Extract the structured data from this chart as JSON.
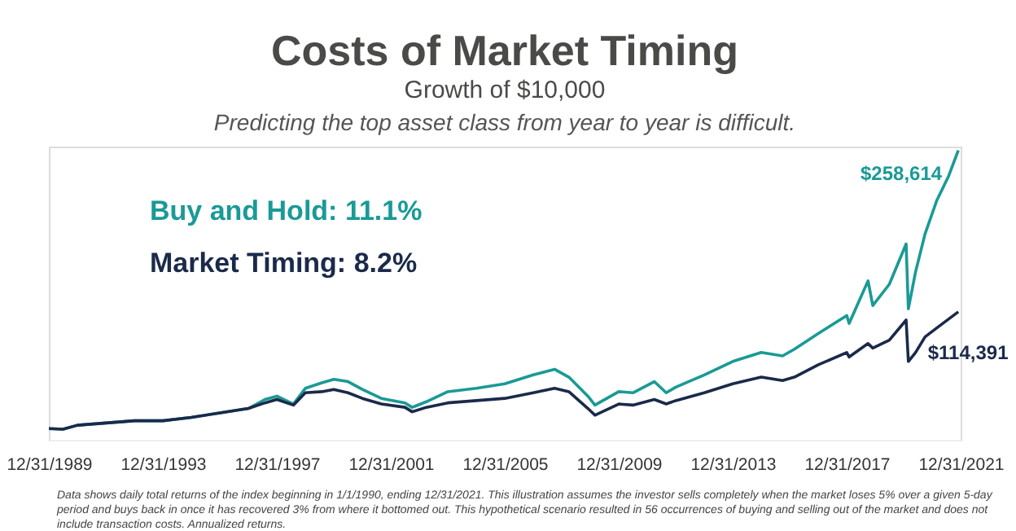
{
  "chart_data": {
    "type": "line",
    "title": "Costs of Market Timing",
    "subtitle": "Growth of $10,000",
    "ylim": [
      0,
      262000
    ],
    "tick_labels": "x",
    "x": [
      "1990-01",
      "1990-07",
      "1991-01",
      "1992-01",
      "1993-01",
      "1994-01",
      "1995-01",
      "1996-01",
      "1997-01",
      "1997-08",
      "1998-01",
      "1998-08",
      "1999-01",
      "1999-08",
      "2000-01",
      "2000-07",
      "2001-01",
      "2001-09",
      "2002-07",
      "2002-10",
      "2003-04",
      "2004-01",
      "2005-01",
      "2006-01",
      "2007-01",
      "2007-10",
      "2008-04",
      "2008-12",
      "2009-03",
      "2010-01",
      "2010-07",
      "2011-04",
      "2011-09",
      "2012-01",
      "2013-01",
      "2014-01",
      "2015-01",
      "2015-10",
      "2016-03",
      "2017-01",
      "2018-01",
      "2018-02",
      "2018-10",
      "2018-12",
      "2019-07",
      "2020-02",
      "2020-03",
      "2020-06",
      "2020-10",
      "2021-03",
      "2021-08",
      "2021-12"
    ],
    "xlim": [
      "1989-12-31",
      "2021-12-31"
    ],
    "xticks": [
      {
        "value": "1989-12-31",
        "label": "12/31/1989"
      },
      {
        "value": "1993-12-31",
        "label": "12/31/1993"
      },
      {
        "value": "1997-12-31",
        "label": "12/31/1997"
      },
      {
        "value": "2001-12-31",
        "label": "12/31/2001"
      },
      {
        "value": "2005-12-31",
        "label": "12/31/2005"
      },
      {
        "value": "2009-12-31",
        "label": "12/31/2009"
      },
      {
        "value": "2013-12-31",
        "label": "12/31/2013"
      },
      {
        "value": "2017-12-31",
        "label": "12/31/2017"
      },
      {
        "value": "2021-12-31",
        "label": "12/31/2021"
      }
    ],
    "series": [
      {
        "name": "Buy and Hold: 11.1%",
        "color": "#1a9a96",
        "values": [
          10000,
          9500,
          13000,
          15000,
          17000,
          17000,
          20000,
          24000,
          28000,
          36000,
          39000,
          32000,
          46000,
          51000,
          54000,
          52000,
          45000,
          37000,
          33000,
          29000,
          34000,
          43000,
          46000,
          50000,
          58000,
          63000,
          56000,
          39000,
          31000,
          43000,
          42000,
          52000,
          42000,
          47000,
          58000,
          70000,
          78000,
          75000,
          81000,
          95000,
          111000,
          104000,
          142000,
          120000,
          139000,
          175000,
          117000,
          150000,
          184000,
          214000,
          236000,
          258614
        ],
        "value_labels": [
          null,
          null,
          null,
          null,
          null,
          null,
          null,
          null,
          null,
          null,
          null,
          null,
          null,
          null,
          null,
          null,
          null,
          null,
          null,
          null,
          null,
          null,
          null,
          null,
          null,
          null,
          null,
          null,
          null,
          null,
          null,
          null,
          null,
          null,
          null,
          null,
          null,
          null,
          null,
          null,
          null,
          null,
          null,
          null,
          null,
          null,
          null,
          null,
          null,
          null,
          null,
          "$258,614"
        ]
      },
      {
        "name": "Market Timing: 8.2%",
        "color": "#1b2a4a",
        "values": [
          10000,
          9500,
          13000,
          15000,
          17000,
          17000,
          20000,
          24000,
          28000,
          33000,
          36000,
          31000,
          42000,
          43000,
          45000,
          42000,
          37000,
          32000,
          29000,
          25000,
          29000,
          33000,
          35000,
          37000,
          42000,
          46000,
          43000,
          28000,
          22000,
          32000,
          31000,
          36000,
          32000,
          35000,
          42000,
          50000,
          56000,
          53000,
          56000,
          67000,
          78000,
          74000,
          86000,
          82000,
          89000,
          107000,
          70000,
          78000,
          92000,
          100000,
          108000,
          114391
        ],
        "value_labels": [
          null,
          null,
          null,
          null,
          null,
          null,
          null,
          null,
          null,
          null,
          null,
          null,
          null,
          null,
          null,
          null,
          null,
          null,
          null,
          null,
          null,
          null,
          null,
          null,
          null,
          null,
          null,
          null,
          null,
          null,
          null,
          null,
          null,
          null,
          null,
          null,
          null,
          null,
          null,
          null,
          null,
          null,
          null,
          null,
          null,
          null,
          null,
          null,
          null,
          null,
          null,
          "$114,391"
        ]
      }
    ],
    "legend": false,
    "grid": false,
    "marker": "none",
    "line_style": "solid",
    "annotations": [
      "Predicting the top asset class from year to year is difficult.",
      "Data shows daily total returns of the index beginning in 1/1/1990, ending 12/31/2021. This illustration assumes the investor sells completely when the market loses 5% over a given 5-day period and buys back in once it has recovered 3% from where it bottomed out. This hypothetical scenario resulted in 56 occurrences of buying and selling out of the market and does not include transaction costs. Annualized returns."
    ]
  }
}
